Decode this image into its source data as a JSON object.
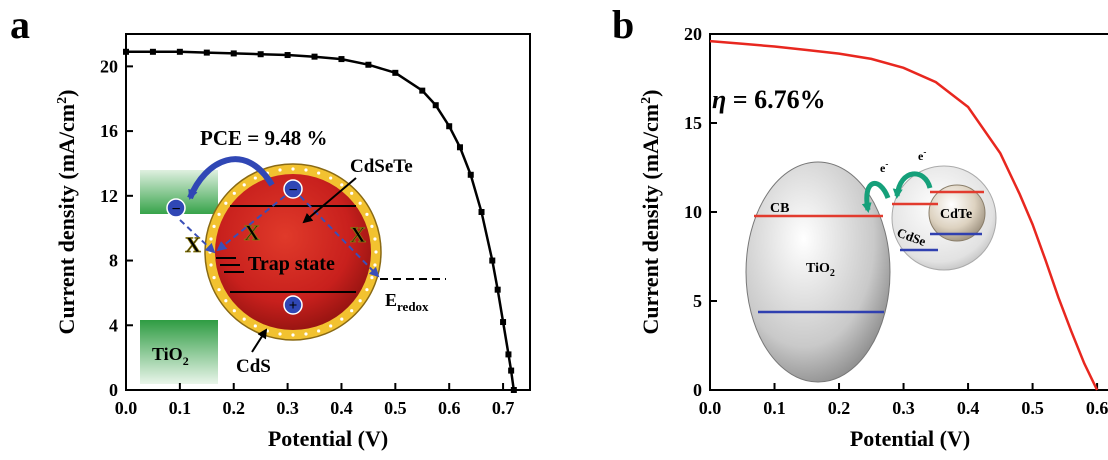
{
  "chart_data": [
    {
      "panel": "a",
      "type": "line",
      "xlabel": "Potential (V)",
      "ylabel": "Current density (mA/cm",
      "ylabel_sup": "2",
      "ylabel_close": ")",
      "xlim": [
        0.0,
        0.75
      ],
      "ylim": [
        0,
        22
      ],
      "xticks": [
        "0.0",
        "0.1",
        "0.2",
        "0.3",
        "0.4",
        "0.5",
        "0.6",
        "0.7"
      ],
      "yticks": [
        "0",
        "4",
        "8",
        "12",
        "16",
        "20"
      ],
      "series": [
        {
          "color": "#000000",
          "marker": "square",
          "x": [
            0.0,
            0.05,
            0.1,
            0.15,
            0.2,
            0.25,
            0.3,
            0.35,
            0.4,
            0.45,
            0.5,
            0.55,
            0.575,
            0.6,
            0.62,
            0.64,
            0.66,
            0.68,
            0.69,
            0.7,
            0.71,
            0.715,
            0.72
          ],
          "y": [
            20.9,
            20.9,
            20.9,
            20.85,
            20.8,
            20.75,
            20.7,
            20.6,
            20.45,
            20.1,
            19.6,
            18.5,
            17.6,
            16.3,
            15.0,
            13.3,
            11.0,
            8.0,
            6.2,
            4.2,
            2.2,
            1.2,
            0.0
          ]
        }
      ],
      "annotations": {
        "pce": "PCE = 9.48 %",
        "cdsete": "CdSeTe",
        "trap": "Trap state",
        "eredox_main": "E",
        "eredox_sub": "redox",
        "tio2_main": "TiO",
        "tio2_sub": "2",
        "cds": "CdS",
        "x_mark": "X",
        "minus": "−",
        "plus": "+"
      }
    },
    {
      "panel": "b",
      "type": "line",
      "xlabel": "Potential (V)",
      "ylabel": "Current density (mA/cm",
      "ylabel_sup": "2",
      "ylabel_close": ")",
      "xlim": [
        0.0,
        0.62
      ],
      "ylim": [
        0,
        20
      ],
      "xticks": [
        "0.0",
        "0.1",
        "0.2",
        "0.3",
        "0.4",
        "0.5",
        "0.6"
      ],
      "yticks": [
        "0",
        "5",
        "10",
        "15",
        "20"
      ],
      "series": [
        {
          "color": "#e8271f",
          "marker": "none",
          "x": [
            0.0,
            0.05,
            0.1,
            0.15,
            0.2,
            0.25,
            0.3,
            0.35,
            0.4,
            0.45,
            0.48,
            0.5,
            0.52,
            0.54,
            0.56,
            0.58,
            0.6
          ],
          "y": [
            19.6,
            19.45,
            19.3,
            19.1,
            18.9,
            18.6,
            18.1,
            17.3,
            15.9,
            13.3,
            11.0,
            9.3,
            7.3,
            5.2,
            3.3,
            1.5,
            0.0
          ]
        }
      ],
      "annotations": {
        "eta_symbol": "η",
        "eta_value": " = 6.76%",
        "cb": "CB",
        "tio2_main": "TiO",
        "tio2_sub": "2",
        "cdte": "CdTe",
        "cdse": "CdSe",
        "e_main": "e",
        "e_sup": "-"
      }
    }
  ],
  "panel_labels": [
    "a",
    "b"
  ],
  "colors": {
    "axis": "#000000",
    "curve_b": "#e8271f",
    "band_red": "#e23b2e",
    "band_blue": "#3040b0",
    "arrow_blue": "#3047b5",
    "arrow_green": "#15a07a",
    "qd_core": "#c8201d",
    "qd_shell": "#f2c230",
    "tio2_green": "#3aa54a"
  }
}
